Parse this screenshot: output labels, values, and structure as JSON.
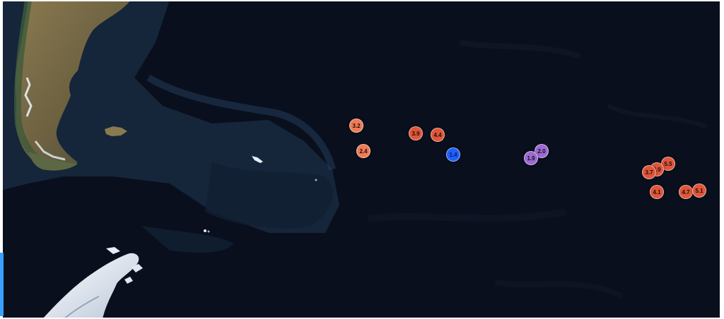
{
  "map": {
    "basemap": "satellite",
    "region_features": [
      "patagonia-landmass",
      "falkland-islands",
      "south-georgia",
      "antarctic-peninsula"
    ],
    "colors": {
      "ocean": "#0a0f1d",
      "shelf": "#1b2d44",
      "land": "#7a6a45",
      "ice": "#e8eef6",
      "marker_high": "#e0553a",
      "marker_mid": "#ef7a55",
      "marker_low": "#9b6ad6",
      "marker_lowest": "#1f5fff"
    },
    "markers": [
      {
        "label": "3.2",
        "tier": "mid"
      },
      {
        "label": "2.4",
        "tier": "mid"
      },
      {
        "label": "3.9",
        "tier": "high"
      },
      {
        "label": "4.4",
        "tier": "high"
      },
      {
        "label": "1.4",
        "tier": "lowest"
      },
      {
        "label": "2.0",
        "tier": "low"
      },
      {
        "label": "1.9",
        "tier": "low"
      },
      {
        "label": "5.5",
        "tier": "high"
      },
      {
        "label": "3.9",
        "tier": "high"
      },
      {
        "label": "3.7",
        "tier": "high"
      },
      {
        "label": "4.1",
        "tier": "high"
      },
      {
        "label": "4.7",
        "tier": "high"
      },
      {
        "label": "5.1",
        "tier": "high"
      }
    ]
  }
}
